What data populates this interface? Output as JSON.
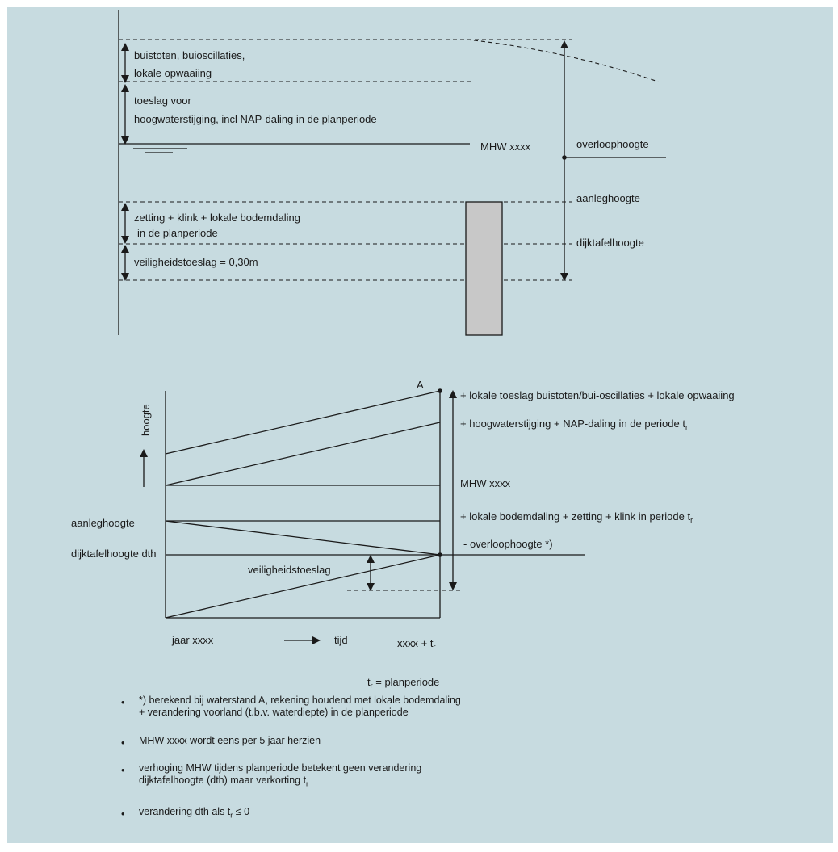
{
  "top_diagram": {
    "labels": {
      "buistoten_1": "buistoten, buioscillaties,",
      "buistoten_2": "lokale opwaaiing",
      "toeslag_1": "toeslag voor",
      "toeslag_2": "hoogwaterstijging, incl NAP-daling in de planperiode",
      "mhw": "MHW xxxx",
      "overloophoogte": "overloophoogte",
      "aanleghoogte": "aanleghoogte",
      "zetting_1": "zetting + klink + lokale bodemdaling",
      "zetting_2": "in de planperiode",
      "dijktafelhoogte": "dijktafelhoogte",
      "veiligheid": "veiligheidstoeslag = 0,30m"
    }
  },
  "bottom_diagram": {
    "point_a": "A",
    "y_axis_label": "hoogte",
    "left_aanleghoogte": "aanleghoogte",
    "left_dth": "dijktafelhoogte dth",
    "veiligheid": "veiligheidstoeslag",
    "x_start": "jaar xxxx",
    "x_tijd": "tijd",
    "x_end": "xxxx + t",
    "x_end_sub": "r",
    "right_1": "+ lokale toeslag  buistoten/bui-oscillaties + lokale opwaaiing",
    "right_2": "+ hoogwaterstijging + NAP-daling in de periode  t",
    "right_2_sub": "r",
    "right_3": "MHW xxxx",
    "right_4": "+ lokale bodemdaling + zetting + klink in periode  t",
    "right_4_sub": "r",
    "right_5": "- overloophoogte *)",
    "planperiode_t": "t",
    "planperiode_sub": "r",
    "planperiode_rest": " = planperiode"
  },
  "notes": {
    "n1_l1": "*) berekend bij waterstand A, rekening houdend met lokale bodemdaling",
    "n1_l2": "+ verandering voorland (t.b.v. waterdiepte) in de planperiode",
    "n2": "MHW xxxx wordt eens per 5 jaar herzien",
    "n3_l1": "verhoging MHW tijdens planperiode betekent geen verandering",
    "n3_l2": "dijktafelhoogte (dth) maar verkorting t",
    "n3_l2_sub": "r",
    "n4_a": "verandering dth als t",
    "n4_sub": "r",
    "n4_b": " ≤ 0"
  },
  "colors": {
    "background": "#c7dbe0",
    "line": "#1a1a1a",
    "block": "#c8c8c8"
  }
}
